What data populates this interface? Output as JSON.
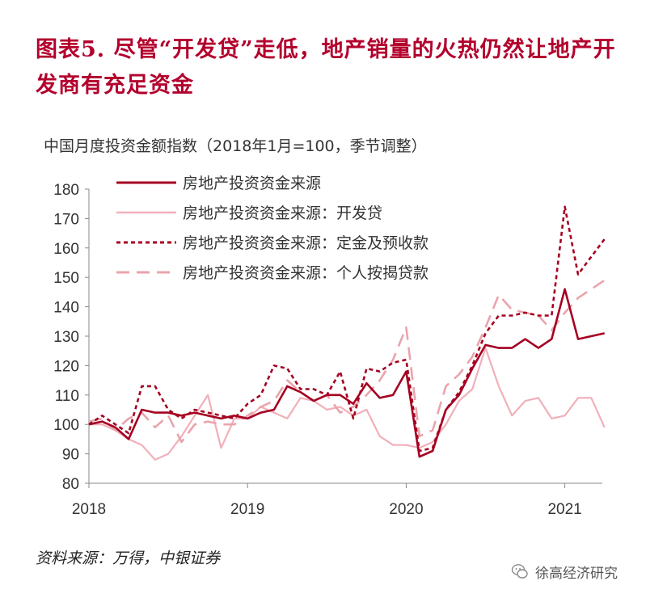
{
  "title": "图表5. 尽管“开发贷”走低，地产销量的火热仍然让地产开发商有充足资金",
  "subtitle": "中国月度投资金额指数（2018年1月=100，季节调整）",
  "source": "资料来源：万得，中银证券",
  "watermark": "徐高经济研究",
  "colors": {
    "title": "#b3002d",
    "total": "#a50021",
    "dev_loans": "#f0b0ba",
    "deposits": "#a50021",
    "mortgages": "#e9a4ad"
  },
  "chart_data": {
    "type": "line",
    "ylim": [
      80,
      180
    ],
    "yticks": [
      "80",
      "90",
      "100",
      "110",
      "120",
      "130",
      "140",
      "150",
      "160",
      "170",
      "180"
    ],
    "xticks": [
      {
        "label": "2018",
        "at": "2018-01"
      },
      {
        "label": "2019",
        "at": "2019-01"
      },
      {
        "label": "2020",
        "at": "2020-01"
      },
      {
        "label": "2021",
        "at": "2021-01"
      }
    ],
    "x": [
      "2018-01",
      "2018-02",
      "2018-03",
      "2018-04",
      "2018-05",
      "2018-06",
      "2018-07",
      "2018-08",
      "2018-09",
      "2018-10",
      "2018-11",
      "2018-12",
      "2019-01",
      "2019-02",
      "2019-03",
      "2019-04",
      "2019-05",
      "2019-06",
      "2019-07",
      "2019-08",
      "2019-09",
      "2019-10",
      "2019-11",
      "2019-12",
      "2020-01",
      "2020-02",
      "2020-03",
      "2020-04",
      "2020-05",
      "2020-06",
      "2020-07",
      "2020-08",
      "2020-09",
      "2020-10",
      "2020-11",
      "2020-12",
      "2021-01",
      "2021-02",
      "2021-03",
      "2021-04"
    ],
    "series": [
      {
        "name": "房地产投资资金来源",
        "style": "solid",
        "width": 2.6,
        "values": [
          100,
          101,
          99,
          95,
          105,
          104,
          104,
          103,
          104,
          103,
          102,
          103,
          102,
          104,
          105,
          113,
          111,
          108,
          110,
          110,
          107,
          114,
          109,
          110,
          118,
          89,
          91,
          105,
          110,
          119,
          127,
          126,
          126,
          129,
          126,
          129,
          146,
          129,
          130,
          131
        ]
      },
      {
        "name": "房地产投资资金来源：开发贷",
        "style": "solid",
        "width": 2.2,
        "values": [
          100,
          100,
          98,
          95,
          93,
          88,
          90,
          96,
          103,
          110,
          92,
          102,
          102,
          106,
          104,
          102,
          109,
          108,
          105,
          106,
          103,
          105,
          96,
          93,
          93,
          92,
          94,
          100,
          108,
          112,
          126,
          113,
          103,
          108,
          109,
          102,
          103,
          109,
          109,
          99
        ]
      },
      {
        "name": "房地产投资资金来源：定金及预收款",
        "style": "dotted",
        "width": 2.6,
        "values": [
          100,
          103,
          100,
          97,
          113,
          113,
          105,
          102,
          105,
          104,
          103,
          102,
          107,
          110,
          120,
          119,
          112,
          112,
          110,
          118,
          102,
          119,
          118,
          121,
          122,
          91,
          92,
          105,
          111,
          120,
          131,
          137,
          137,
          138,
          137,
          137,
          174,
          151,
          157,
          163
        ]
      },
      {
        "name": "房地产投资资金来源：个人按揭贷款",
        "style": "dashed",
        "width": 2.6,
        "values": [
          101,
          102,
          98,
          102,
          104,
          99,
          103,
          94,
          100,
          101,
          100,
          100,
          103,
          106,
          108,
          115,
          111,
          108,
          110,
          104,
          106,
          110,
          115,
          122,
          133,
          96,
          98,
          113,
          117,
          123,
          133,
          144,
          139,
          138,
          137,
          132,
          138,
          143,
          146,
          149
        ]
      }
    ]
  }
}
